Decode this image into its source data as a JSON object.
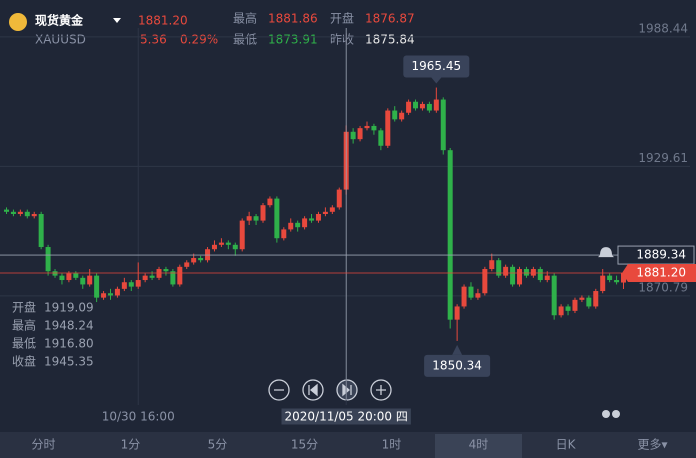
{
  "header": {
    "name": "现货黄金",
    "symbol": "XAUUSD",
    "last": "1881.20",
    "change": "5.36",
    "change_pct": "0.29%",
    "high_label": "最高",
    "high": "1881.86",
    "open_label": "开盘",
    "open": "1876.87",
    "low_label": "最低",
    "low": "1873.91",
    "prev_close_label": "昨收",
    "prev_close": "1875.84"
  },
  "chart_data": {
    "type": "candlestick",
    "categories": [
      null,
      null,
      null,
      null,
      null,
      null,
      null,
      null,
      null,
      null,
      null,
      null,
      null,
      null,
      null,
      null,
      null,
      null,
      null,
      "10/30 16:00",
      null,
      null,
      null,
      null,
      null,
      null,
      null,
      null,
      null,
      null,
      null,
      null,
      null,
      null,
      null,
      null,
      null,
      null,
      null,
      null,
      null,
      null,
      null,
      null,
      null,
      null,
      null,
      null,
      null,
      "2020/11/05 20:00 四",
      null,
      null,
      null,
      null,
      null,
      null,
      null,
      null,
      null,
      null,
      null,
      null,
      null,
      null,
      null,
      null,
      null,
      null,
      null,
      null,
      null,
      null,
      null,
      null,
      null,
      null,
      null,
      null,
      null,
      null,
      null,
      null,
      null,
      null,
      null,
      null,
      null,
      null,
      null,
      null
    ],
    "open": [
      1910,
      1909,
      1908,
      1909,
      1907,
      1908,
      1893,
      1882,
      1880,
      1878,
      1881,
      1879,
      1876,
      1880,
      1870,
      1872,
      1871,
      1874,
      1877,
      1875,
      1878,
      1880,
      1879,
      1883,
      1882,
      1876,
      1884,
      1886,
      1888,
      1887,
      1892,
      1894,
      1895,
      1894,
      1892,
      1905,
      1907,
      1905,
      1912,
      1915,
      1897,
      1901,
      1904,
      1902,
      1906,
      1905,
      1908,
      1909,
      1911,
      1919.09,
      1945.35,
      1942,
      1947,
      1948,
      1946,
      1939,
      1955,
      1951,
      1954,
      1959,
      1956,
      1958,
      1955,
      1960,
      1937,
      1860,
      1866,
      1875,
      1870,
      1872,
      1883,
      1887,
      1880,
      1884,
      1876,
      1883,
      1880,
      1883,
      1878,
      1880,
      1862,
      1866,
      1864,
      1869,
      1870,
      1866,
      1873,
      1880,
      1878,
      1876.87
    ],
    "high": [
      1911,
      1910,
      1910,
      1910,
      1909,
      1909,
      1894,
      1883,
      1881,
      1882,
      1882,
      1880,
      1883,
      1881,
      1873,
      1874,
      1875,
      1879,
      1878,
      1886,
      1881,
      1882,
      1884,
      1884,
      1883,
      1885,
      1887,
      1890,
      1889,
      1893,
      1896,
      1897,
      1896,
      1895,
      1906,
      1909,
      1908,
      1913,
      1916,
      1916,
      1902,
      1906,
      1905,
      1907,
      1908,
      1909,
      1911,
      1912,
      1920,
      1948.24,
      1947,
      1948,
      1950,
      1949,
      1947,
      1956,
      1957,
      1955,
      1960,
      1960,
      1959,
      1959,
      1965.45,
      1961,
      1938,
      1867,
      1876,
      1877,
      1874,
      1884,
      1890,
      1888,
      1885,
      1885,
      1884,
      1884,
      1884,
      1884,
      1882,
      1881,
      1867,
      1867,
      1870,
      1871,
      1871,
      1874,
      1883,
      1881,
      1880,
      1881.86
    ],
    "low": [
      1908,
      1907,
      1907,
      1906,
      1906,
      1892,
      1880,
      1879,
      1876,
      1877,
      1878,
      1874,
      1875,
      1868,
      1869,
      1869,
      1870,
      1873,
      1873,
      1874,
      1877,
      1878,
      1878,
      1880,
      1875,
      1875,
      1883,
      1885,
      1886,
      1886,
      1891,
      1893,
      1892,
      1889,
      1891,
      1903,
      1903,
      1904,
      1911,
      1895,
      1896,
      1900,
      1900,
      1901,
      1904,
      1904,
      1907,
      1908,
      1910,
      1916.8,
      1940,
      1941,
      1946,
      1944,
      1937,
      1938,
      1950,
      1950,
      1953,
      1955,
      1955,
      1954,
      1954,
      1935,
      1856,
      1850.34,
      1865,
      1869,
      1869,
      1871,
      1882,
      1879,
      1879,
      1875,
      1875,
      1879,
      1879,
      1877,
      1877,
      1860,
      1861,
      1862,
      1863,
      1868,
      1865,
      1865,
      1872,
      1877,
      1876,
      1873.91
    ],
    "close": [
      1909,
      1908,
      1909,
      1907,
      1908,
      1893,
      1882,
      1880,
      1878,
      1881,
      1879,
      1876,
      1880,
      1870,
      1872,
      1871,
      1874,
      1877,
      1875,
      1878,
      1880,
      1879,
      1883,
      1882,
      1876,
      1884,
      1886,
      1888,
      1887,
      1892,
      1894,
      1895,
      1894,
      1892,
      1905,
      1907,
      1905,
      1912,
      1915,
      1897,
      1901,
      1904,
      1902,
      1906,
      1905,
      1908,
      1909,
      1911,
      1919.09,
      1945.35,
      1942,
      1947,
      1948,
      1946,
      1939,
      1955,
      1951,
      1954,
      1959,
      1956,
      1958,
      1955,
      1960,
      1937,
      1860,
      1866,
      1875,
      1870,
      1872,
      1883,
      1887,
      1880,
      1884,
      1876,
      1883,
      1880,
      1883,
      1878,
      1880,
      1862,
      1866,
      1864,
      1869,
      1870,
      1866,
      1873,
      1880,
      1878,
      1877,
      1881.2
    ],
    "up_color": "#e8493d",
    "down_color": "#2fb14a",
    "ylim": [
      1823.5,
      1992.5
    ],
    "yticks": [
      1988.44,
      1929.61,
      1870.79
    ],
    "grid": true,
    "max_index": 62,
    "min_index": 65,
    "crosshair": {
      "index": 49,
      "price": 1889.34,
      "open_label": "开盘",
      "open": "1919.09",
      "high_label": "最高",
      "high": "1948.24",
      "low_label": "最低",
      "low": "1916.80",
      "close_label": "收盘",
      "close": "1945.35"
    }
  },
  "tabs": [
    "分时",
    "1分",
    "5分",
    "15分",
    "1时",
    "4时",
    "日K",
    "更多▾"
  ],
  "selected_tab": 5
}
